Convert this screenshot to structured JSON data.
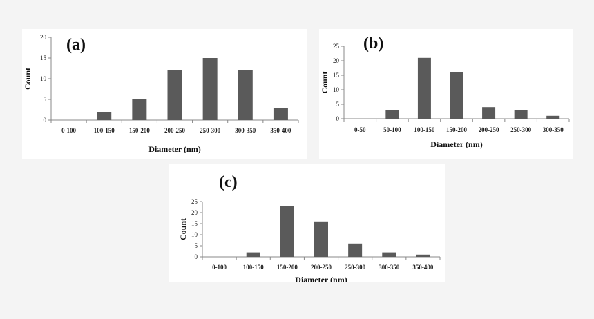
{
  "chart_data": [
    {
      "type": "bar",
      "panel_label": "(a)",
      "categories": [
        "0-100",
        "100-150",
        "150-200",
        "200-250",
        "250-300",
        "300-350",
        "350-400"
      ],
      "values": [
        0,
        2,
        5,
        12,
        15,
        12,
        3
      ],
      "xlabel": "Diameter (nm)",
      "ylabel": "Count",
      "ylim": [
        0,
        20
      ],
      "yticks": [
        0,
        5,
        10,
        15,
        20
      ],
      "bar_color": "#5a5a5a",
      "grid": false
    },
    {
      "type": "bar",
      "panel_label": "(b)",
      "categories": [
        "0-50",
        "50-100",
        "100-150",
        "150-200",
        "200-250",
        "250-300",
        "300-350"
      ],
      "values": [
        0,
        3,
        21,
        16,
        4,
        3,
        1
      ],
      "xlabel": "Diameter (nm)",
      "ylabel": "Count",
      "ylim": [
        0,
        25
      ],
      "yticks": [
        0,
        5,
        10,
        15,
        20,
        25
      ],
      "bar_color": "#5a5a5a",
      "grid": false
    },
    {
      "type": "bar",
      "panel_label": "(c)",
      "categories": [
        "0-100",
        "100-150",
        "150-200",
        "200-250",
        "250-300",
        "300-350",
        "350-400"
      ],
      "values": [
        0,
        2,
        23,
        16,
        6,
        2,
        1
      ],
      "xlabel": "Diameter (nm)",
      "ylabel": "Count",
      "ylim": [
        0,
        25
      ],
      "yticks": [
        0,
        5,
        10,
        15,
        20,
        25
      ],
      "bar_color": "#5a5a5a",
      "grid": false
    }
  ]
}
